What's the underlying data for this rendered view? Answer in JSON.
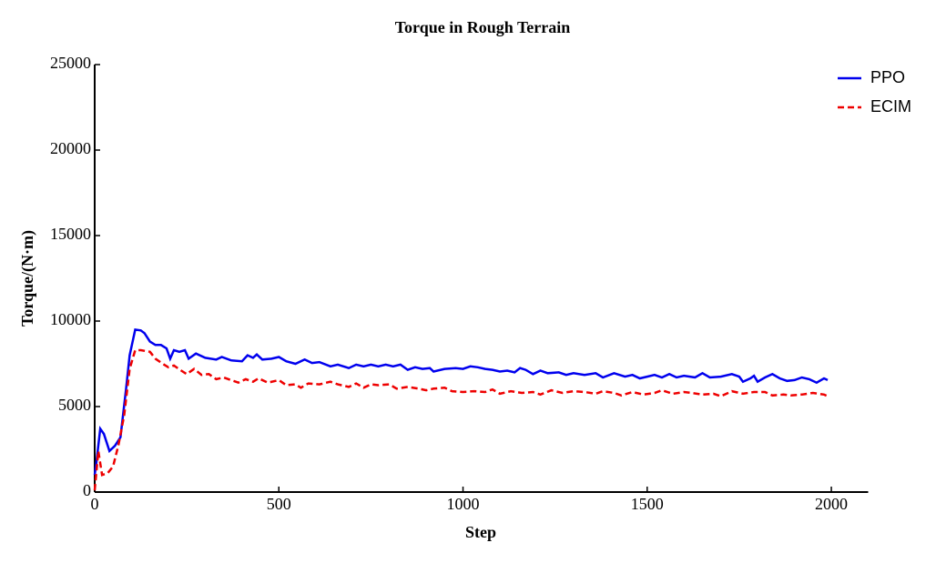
{
  "chart_data": {
    "type": "line",
    "title": "Torque in Rough Terrain",
    "x_label": "Step",
    "y_label": "Torque/(N·m)",
    "xlim": [
      0,
      2100
    ],
    "xticks": [
      0,
      500,
      1000,
      1500,
      2000
    ],
    "ylim": [
      0,
      25000
    ],
    "yticks": [
      0,
      5000,
      10000,
      15000,
      20000,
      25000
    ],
    "legend": "top-right",
    "series": [
      {
        "name": "PPO",
        "color": "#0000ee",
        "dash": "solid",
        "x": [
          0,
          5,
          15,
          25,
          40,
          55,
          70,
          85,
          95,
          110,
          125,
          135,
          150,
          165,
          180,
          195,
          205,
          215,
          230,
          245,
          255,
          275,
          300,
          330,
          345,
          370,
          400,
          415,
          430,
          440,
          455,
          480,
          500,
          520,
          545,
          570,
          590,
          610,
          640,
          660,
          690,
          710,
          730,
          750,
          770,
          790,
          810,
          830,
          850,
          870,
          890,
          910,
          920,
          950,
          980,
          1000,
          1020,
          1040,
          1060,
          1080,
          1100,
          1120,
          1140,
          1155,
          1170,
          1190,
          1210,
          1230,
          1260,
          1280,
          1300,
          1330,
          1360,
          1380,
          1410,
          1440,
          1460,
          1480,
          1500,
          1520,
          1540,
          1560,
          1580,
          1600,
          1630,
          1650,
          1670,
          1700,
          1730,
          1750,
          1760,
          1780,
          1790,
          1800,
          1820,
          1840,
          1860,
          1880,
          1900,
          1920,
          1940,
          1960,
          1980,
          1990
        ],
        "values": [
          1000,
          1800,
          3700,
          3400,
          2400,
          2700,
          3200,
          6000,
          8000,
          9500,
          9450,
          9300,
          8800,
          8600,
          8600,
          8400,
          7800,
          8300,
          8200,
          8300,
          7800,
          8100,
          7850,
          7750,
          7900,
          7700,
          7650,
          8000,
          7850,
          8050,
          7750,
          7800,
          7900,
          7650,
          7500,
          7750,
          7550,
          7600,
          7350,
          7450,
          7250,
          7450,
          7350,
          7450,
          7350,
          7450,
          7350,
          7450,
          7150,
          7300,
          7200,
          7250,
          7050,
          7200,
          7250,
          7200,
          7350,
          7300,
          7200,
          7150,
          7050,
          7100,
          7000,
          7250,
          7150,
          6900,
          7100,
          6950,
          7000,
          6850,
          6950,
          6850,
          6950,
          6700,
          6950,
          6750,
          6850,
          6650,
          6750,
          6850,
          6700,
          6900,
          6700,
          6800,
          6700,
          6950,
          6700,
          6750,
          6900,
          6750,
          6450,
          6650,
          6800,
          6450,
          6700,
          6900,
          6650,
          6500,
          6550,
          6700,
          6600,
          6400,
          6650,
          6550
        ]
      },
      {
        "name": "ECIM",
        "color": "#ee0000",
        "dash": "dashed",
        "x": [
          0,
          10,
          20,
          35,
          50,
          65,
          80,
          95,
          110,
          125,
          150,
          165,
          185,
          200,
          215,
          235,
          250,
          270,
          290,
          310,
          330,
          350,
          370,
          390,
          410,
          430,
          445,
          470,
          500,
          520,
          545,
          560,
          580,
          610,
          640,
          660,
          690,
          710,
          730,
          750,
          770,
          800,
          820,
          850,
          880,
          900,
          920,
          950,
          970,
          1000,
          1030,
          1060,
          1080,
          1100,
          1130,
          1160,
          1190,
          1210,
          1240,
          1270,
          1300,
          1330,
          1360,
          1380,
          1410,
          1430,
          1460,
          1490,
          1520,
          1540,
          1570,
          1600,
          1620,
          1650,
          1680,
          1700,
          1730,
          1760,
          1790,
          1820,
          1840,
          1870,
          1890,
          1920,
          1950,
          1980,
          1990
        ],
        "values": [
          100,
          2400,
          1000,
          1100,
          1500,
          2800,
          4500,
          7200,
          8300,
          8300,
          8200,
          7800,
          7500,
          7300,
          7400,
          7100,
          6900,
          7200,
          6850,
          6900,
          6600,
          6700,
          6550,
          6400,
          6600,
          6450,
          6650,
          6400,
          6550,
          6250,
          6300,
          6100,
          6350,
          6300,
          6450,
          6300,
          6150,
          6350,
          6100,
          6300,
          6250,
          6300,
          6050,
          6150,
          6050,
          5950,
          6050,
          6100,
          5900,
          5850,
          5900,
          5850,
          6000,
          5750,
          5900,
          5800,
          5850,
          5700,
          5950,
          5800,
          5900,
          5850,
          5750,
          5900,
          5800,
          5650,
          5850,
          5700,
          5800,
          5950,
          5750,
          5850,
          5800,
          5700,
          5750,
          5600,
          5900,
          5750,
          5850,
          5850,
          5650,
          5700,
          5650,
          5700,
          5800,
          5700,
          5600
        ]
      }
    ]
  }
}
